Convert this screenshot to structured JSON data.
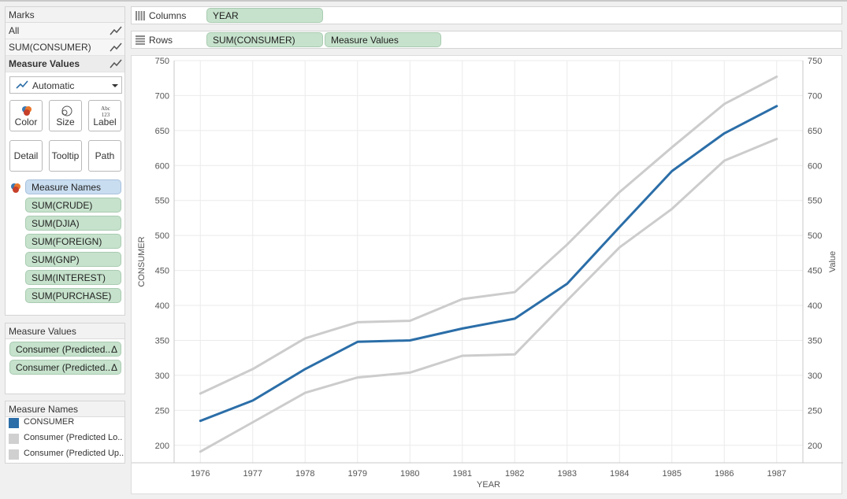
{
  "marks": {
    "title": "Marks",
    "rows": [
      {
        "label": "All",
        "icon": "line-mark-icon"
      },
      {
        "label": "SUM(CONSUMER)",
        "icon": "line-mark-icon"
      },
      {
        "label": "Measure Values",
        "icon": "line-mark-icon"
      }
    ],
    "mark_type": "Automatic",
    "buttons": [
      {
        "label": "Color",
        "icon": "color-palette-icon"
      },
      {
        "label": "Size",
        "icon": "size-circles-icon"
      },
      {
        "label": "Label",
        "icon": "abc-123-icon"
      },
      {
        "label": "Detail"
      },
      {
        "label": "Tooltip"
      },
      {
        "label": "Path"
      }
    ],
    "color_field": "Measure Names",
    "detail_fields": [
      "SUM(CRUDE)",
      "SUM(DJIA)",
      "SUM(FOREIGN)",
      "SUM(GNP)",
      "SUM(INTEREST)",
      "SUM(PURCHASE)"
    ]
  },
  "measure_values": {
    "title": "Measure Values",
    "fields": [
      "Consumer (Predicted..",
      "Consumer (Predicted.."
    ],
    "delta_symbol": "Δ"
  },
  "measure_names": {
    "title": "Measure Names",
    "items": [
      {
        "label": "CONSUMER",
        "color": "#2b6ea8"
      },
      {
        "label": "Consumer (Predicted Lo..",
        "color": "#d0d0d0"
      },
      {
        "label": "Consumer (Predicted Up..",
        "color": "#d0d0d0"
      }
    ]
  },
  "shelves": {
    "columns": {
      "label": "Columns",
      "pills": [
        "YEAR"
      ]
    },
    "rows": {
      "label": "Rows",
      "pills": [
        "SUM(CONSUMER)",
        "Measure Values"
      ]
    }
  },
  "chart_data": {
    "type": "line",
    "x": [
      1976,
      1977,
      1978,
      1979,
      1980,
      1981,
      1982,
      1983,
      1984,
      1985,
      1986,
      1987
    ],
    "xlabel": "YEAR",
    "ylabel": "CONSUMER",
    "y2label": "Value",
    "ylim": [
      175,
      750
    ],
    "yticks": [
      200,
      250,
      300,
      350,
      400,
      450,
      500,
      550,
      600,
      650,
      700,
      750
    ],
    "grid": true,
    "series": [
      {
        "name": "Consumer (Predicted Up..",
        "color": "#cccccc",
        "values": [
          274,
          309,
          353,
          376,
          378,
          409,
          419,
          487,
          562,
          626,
          688,
          727
        ]
      },
      {
        "name": "Consumer (Predicted Lo..",
        "color": "#cccccc",
        "values": [
          191,
          233,
          275,
          297,
          304,
          328,
          330,
          407,
          483,
          538,
          607,
          638
        ]
      },
      {
        "name": "CONSUMER",
        "color": "#2b6ea8",
        "values": [
          235,
          264,
          309,
          348,
          350,
          367,
          381,
          431,
          512,
          592,
          646,
          685
        ]
      }
    ]
  }
}
